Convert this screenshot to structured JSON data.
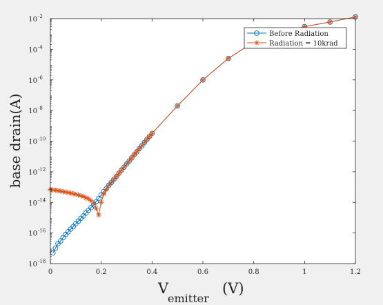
{
  "chart_data": {
    "type": "line",
    "xlabel": {
      "main": "V",
      "sub": "emitter",
      "unit": "(V)"
    },
    "ylabel": "base drain(A)",
    "xlim": [
      0,
      1.2
    ],
    "ylim": [
      1e-18,
      0.01
    ],
    "yscale": "log",
    "grid": false,
    "legend_position": "top-right",
    "x_ticks": [
      "0",
      "0.2",
      "0.4",
      "0.6",
      "0.8",
      "1",
      "1.2"
    ],
    "y_ticks": [
      {
        "base": "10",
        "exp": "-18"
      },
      {
        "base": "10",
        "exp": "-16"
      },
      {
        "base": "10",
        "exp": "-14"
      },
      {
        "base": "10",
        "exp": "-12"
      },
      {
        "base": "10",
        "exp": "-10"
      },
      {
        "base": "10",
        "exp": "-8"
      },
      {
        "base": "10",
        "exp": "-6"
      },
      {
        "base": "10",
        "exp": "-4"
      },
      {
        "base": "10",
        "exp": "-2"
      }
    ],
    "series": [
      {
        "name": "Before Radiation",
        "color": "#0072bd",
        "marker": "circle",
        "x": [
          0.01,
          0.02,
          0.03,
          0.04,
          0.05,
          0.06,
          0.07,
          0.08,
          0.09,
          0.1,
          0.11,
          0.12,
          0.13,
          0.14,
          0.15,
          0.16,
          0.17,
          0.18,
          0.19,
          0.2,
          0.21,
          0.22,
          0.23,
          0.24,
          0.25,
          0.26,
          0.27,
          0.28,
          0.29,
          0.3,
          0.31,
          0.32,
          0.33,
          0.34,
          0.35,
          0.36,
          0.37,
          0.38,
          0.39,
          0.4,
          0.5,
          0.6,
          0.7,
          0.8,
          0.9,
          1.0,
          1.1,
          1.2
        ],
        "y": [
          5e-18,
          1e-17,
          2e-17,
          3e-17,
          5e-17,
          8e-17,
          1.2e-16,
          1.8e-16,
          2.6e-16,
          4e-16,
          6e-16,
          9e-16,
          1.3e-15,
          2e-15,
          3e-15,
          4.5e-15,
          7e-15,
          1.1e-14,
          1.8e-14,
          3e-14,
          5e-14,
          8e-14,
          1.3e-13,
          2e-13,
          3.2e-13,
          5e-13,
          8e-13,
          1.3e-12,
          2e-12,
          3.2e-12,
          5e-12,
          8e-12,
          1.3e-11,
          2e-11,
          3.2e-11,
          5e-11,
          8e-11,
          1.3e-10,
          2e-10,
          3.2e-10,
          2e-08,
          1e-06,
          2.5e-05,
          0.0003,
          0.001,
          0.003,
          0.006,
          0.013
        ]
      },
      {
        "name": "Radiation = 10krad",
        "color": "#d95319",
        "marker": "asterisk",
        "x": [
          0.0,
          0.01,
          0.02,
          0.03,
          0.04,
          0.05,
          0.06,
          0.07,
          0.08,
          0.09,
          0.1,
          0.11,
          0.12,
          0.13,
          0.14,
          0.15,
          0.16,
          0.17,
          0.18,
          0.19,
          0.2,
          0.21,
          0.22,
          0.23,
          0.24,
          0.25,
          0.26,
          0.27,
          0.28,
          0.29,
          0.3,
          0.31,
          0.32,
          0.33,
          0.34,
          0.35,
          0.36,
          0.37,
          0.38,
          0.39,
          0.4,
          0.5,
          0.6,
          0.7,
          0.8,
          0.9,
          1.0,
          1.1,
          1.2
        ],
        "y": [
          7e-14,
          6.5e-14,
          6.2e-14,
          5.8e-14,
          5.5e-14,
          5e-14,
          4.7e-14,
          4.4e-14,
          4e-14,
          3.7e-14,
          3.4e-14,
          3e-14,
          2.7e-14,
          2.4e-14,
          2e-14,
          1.7e-14,
          1.3e-14,
          9e-15,
          4e-15,
          1.5e-15,
          1e-14,
          3.5e-14,
          7e-14,
          1.3e-13,
          2e-13,
          3.2e-13,
          5e-13,
          8e-13,
          1.3e-12,
          2e-12,
          3.2e-12,
          5e-12,
          8e-12,
          1.3e-11,
          2e-11,
          3.2e-11,
          5e-11,
          8e-11,
          1.3e-10,
          2e-10,
          3.2e-10,
          2e-08,
          1e-06,
          2.5e-05,
          0.0003,
          0.001,
          0.003,
          0.006,
          0.013
        ]
      }
    ]
  }
}
